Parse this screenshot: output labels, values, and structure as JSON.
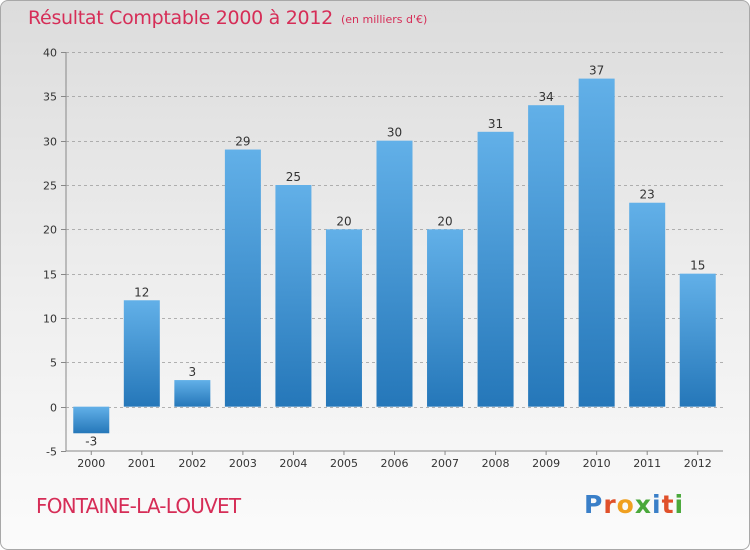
{
  "title": "Résultat Comptable 2000 à 2012",
  "subtitle": "(en milliers d'€)",
  "commune": "FONTAINE-LA-LOUVET",
  "logo": {
    "text": "Proxiti",
    "letter_colors": [
      "#3a7fc8",
      "#e0502a",
      "#f0a020",
      "#4aa83a",
      "#3a7fc8",
      "#e0502a",
      "#4aa83a"
    ]
  },
  "colors": {
    "title": "#d62d57",
    "bar_top": "#62b0e8",
    "bar_bottom": "#2577b9",
    "grid": "#9a9a9a"
  },
  "chart_data": {
    "type": "bar",
    "title": "Résultat Comptable 2000 à 2012",
    "subtitle": "(en milliers d'€)",
    "categories": [
      "2000",
      "2001",
      "2002",
      "2003",
      "2004",
      "2005",
      "2006",
      "2007",
      "2008",
      "2009",
      "2010",
      "2011",
      "2012"
    ],
    "values": [
      -3,
      12,
      3,
      29,
      25,
      20,
      30,
      20,
      31,
      34,
      37,
      23,
      15
    ],
    "ylim": [
      -5,
      40
    ],
    "yticks": [
      -5,
      0,
      5,
      10,
      15,
      20,
      25,
      30,
      35,
      40
    ],
    "grid": "horizontal dashed",
    "xlabel": "",
    "ylabel": ""
  }
}
